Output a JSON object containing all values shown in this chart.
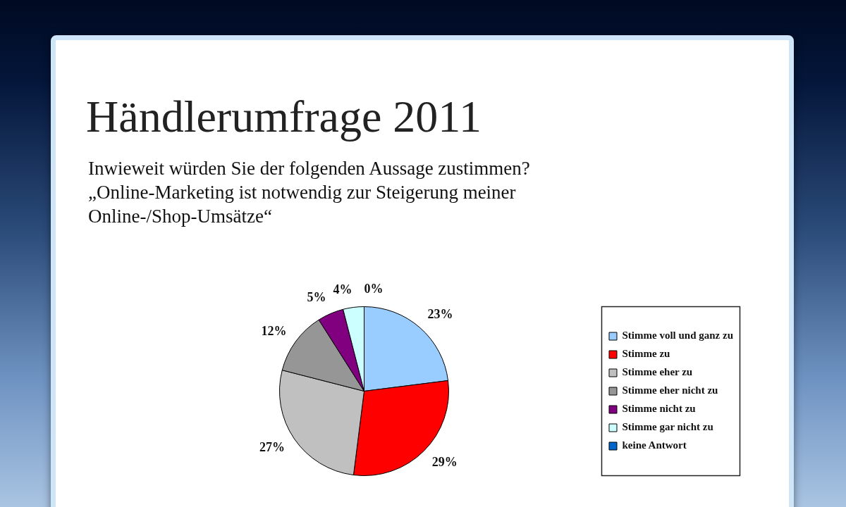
{
  "chart_data": {
    "type": "pie",
    "title": "Händlerumfrage 2011",
    "subtitle": "Inwieweit würden Sie der folgenden Aussage zustimmen?\n„Online-Marketing ist notwendig zur Steigerung meiner\nOnline-/Shop-Umsätze“",
    "categories": [
      "Stimme voll und ganz zu",
      "Stimme zu",
      "Stimme eher zu",
      "Stimme eher nicht zu",
      "Stimme nicht zu",
      "Stimme gar nicht zu",
      "keine Antwort"
    ],
    "values": [
      23,
      29,
      27,
      12,
      5,
      4,
      0
    ],
    "colors": [
      "#99ccff",
      "#ff0000",
      "#c0c0c0",
      "#969696",
      "#800080",
      "#ccffff",
      "#0066cc"
    ],
    "value_labels": [
      "23%",
      "29%",
      "27%",
      "12%",
      "5%",
      "4%",
      "0%"
    ],
    "legend": "right"
  }
}
